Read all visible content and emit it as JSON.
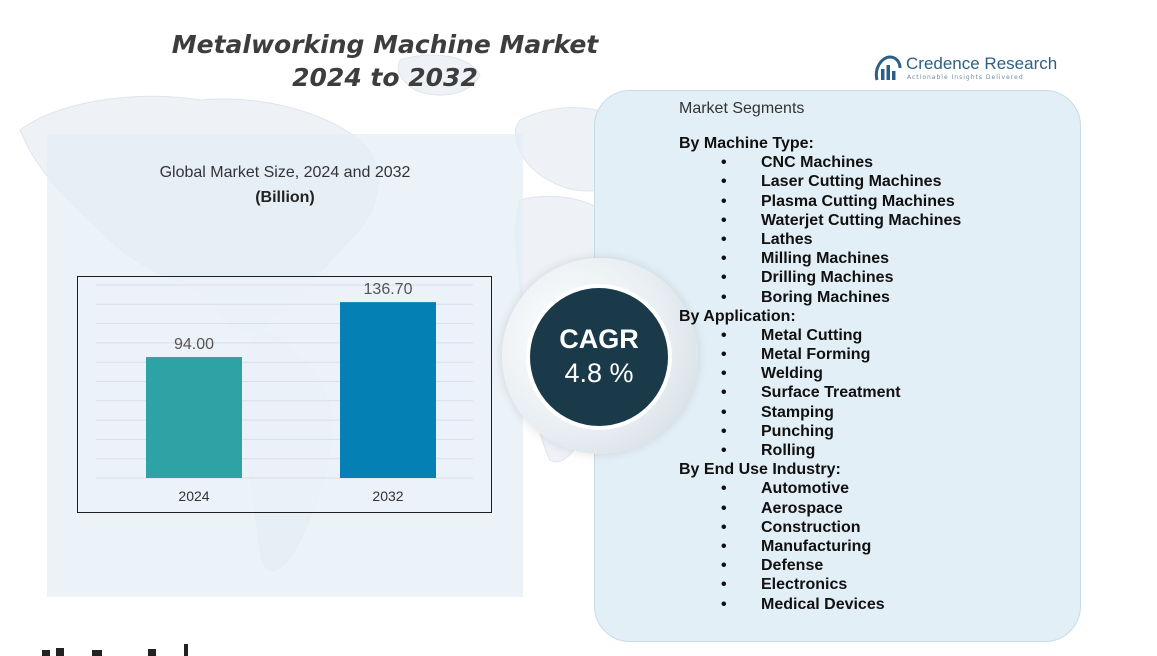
{
  "title": {
    "line1": "Metalworking Machine Market",
    "line2": "2024 to 2032"
  },
  "logo": {
    "brand": "Credence Research",
    "tagline": "Actionable Insights Delivered"
  },
  "chart_heading": "Global Market Size, 2024 and 2032",
  "chart_unit": "(Billion)",
  "cagr": {
    "label": "CAGR",
    "value": "4.8 %"
  },
  "segments": {
    "title": "Market Segments",
    "groups": [
      {
        "label": "By Machine Type:",
        "items": [
          "CNC Machines",
          "Laser Cutting Machines",
          "Plasma Cutting Machines",
          "Waterjet Cutting Machines",
          "Lathes",
          "Milling Machines",
          "Drilling Machines",
          "Boring Machines"
        ]
      },
      {
        "label": "By Application:",
        "items": [
          "Metal Cutting",
          "Metal Forming",
          "Welding",
          "Surface Treatment",
          "Stamping",
          "Punching",
          "Rolling"
        ]
      },
      {
        "label": "By End Use Industry:",
        "items": [
          "Automotive",
          "Aerospace",
          "Construction",
          "Manufacturing",
          "Defense",
          "Electronics",
          "Medical Devices"
        ]
      }
    ]
  },
  "colors": {
    "bar_2024": "#2ea3a5",
    "bar_2032": "#0580b4",
    "cagr_bg": "#1a3a4a",
    "panel_bg": "#e3eff6"
  },
  "chart_data": {
    "type": "bar",
    "categories": [
      "2024",
      "2032"
    ],
    "values": [
      94.0,
      136.7
    ],
    "value_labels": [
      "94.00",
      "136.70"
    ],
    "title": "Global Market Size, 2024 and 2032",
    "unit": "(Billion)",
    "ylim": [
      0,
      150
    ],
    "grid": true
  }
}
